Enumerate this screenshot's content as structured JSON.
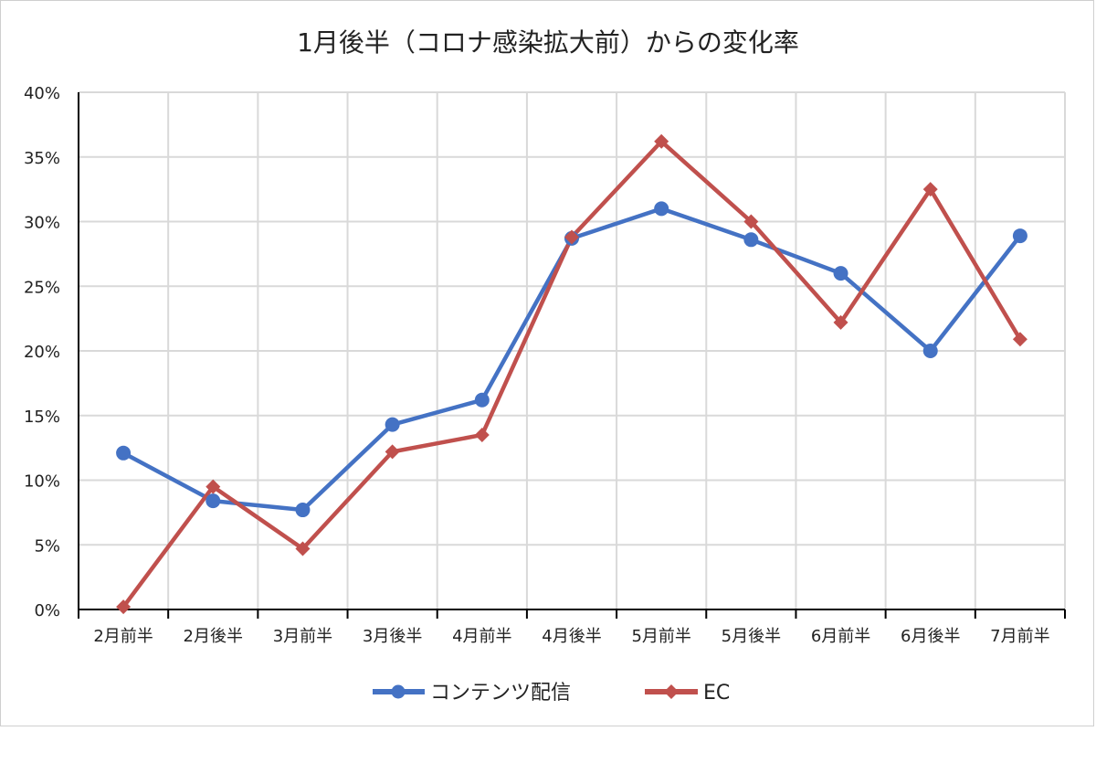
{
  "chart_data": {
    "type": "line",
    "title": "1月後半（コロナ感染拡大前）からの変化率",
    "categories": [
      "2月前半",
      "2月後半",
      "3月前半",
      "3月後半",
      "4月前半",
      "4月後半",
      "5月前半",
      "5月後半",
      "6月前半",
      "6月後半",
      "7月前半"
    ],
    "y_ticks": [
      "0%",
      "5%",
      "10%",
      "15%",
      "20%",
      "25%",
      "30%",
      "35%",
      "40%"
    ],
    "ylim": [
      0,
      40
    ],
    "grid": true,
    "legend_position": "bottom",
    "series": [
      {
        "name": "コンテンツ配信",
        "color": "#4472c4",
        "marker": "circle",
        "values": [
          12.1,
          8.4,
          7.7,
          14.3,
          16.2,
          28.7,
          31.0,
          28.6,
          26.0,
          20.0,
          28.9
        ]
      },
      {
        "name": "EC",
        "color": "#c0504d",
        "marker": "diamond",
        "values": [
          0.2,
          9.5,
          4.7,
          12.2,
          13.5,
          28.8,
          36.2,
          30.0,
          22.2,
          32.5,
          20.9
        ]
      }
    ]
  }
}
